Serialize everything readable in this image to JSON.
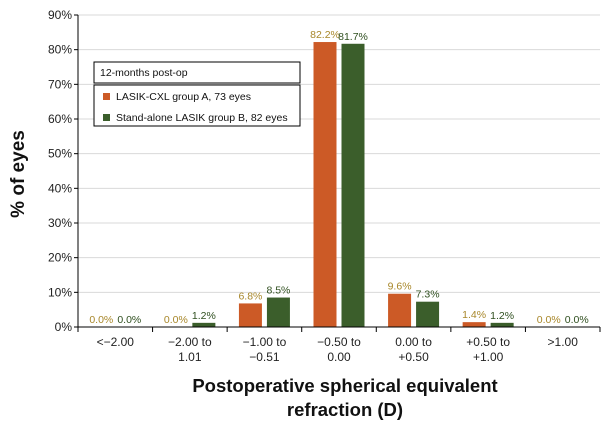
{
  "chart_data": {
    "type": "bar",
    "ylabel": "% of eyes",
    "xlabel_lines": [
      "Postoperative spherical equivalent",
      "refraction (D)"
    ],
    "ylim": [
      0,
      90
    ],
    "yticks": [
      "0%",
      "10%",
      "20%",
      "30%",
      "40%",
      "50%",
      "60%",
      "70%",
      "80%",
      "90%"
    ],
    "categories": [
      [
        "<−2.00"
      ],
      [
        "−2.00 to",
        "1.01"
      ],
      [
        "−1.00 to",
        "−0.51"
      ],
      [
        "−0.50 to",
        "0.00"
      ],
      [
        "0.00 to",
        "+0.50"
      ],
      [
        "+0.50 to",
        "+1.00"
      ],
      [
        ">1.00"
      ]
    ],
    "legend_title": "12-months post-op",
    "legend_position": "upper-left",
    "series": [
      {
        "name": "LASIK-CXL group A, 73 eyes",
        "color": "#cc5a26",
        "label_color": "#a8872a",
        "values": [
          0.0,
          0.0,
          6.8,
          82.2,
          9.6,
          1.4,
          0.0
        ],
        "labels": [
          "0.0%",
          "0.0%",
          "6.8%",
          "82.2%",
          "9.6%",
          "1.4%",
          "0.0%"
        ]
      },
      {
        "name": "Stand-alone LASIK group B, 82 eyes",
        "color": "#3b5e2b",
        "label_color": "#2f4f1f",
        "values": [
          0.0,
          1.2,
          8.5,
          81.7,
          7.3,
          1.2,
          0.0
        ],
        "labels": [
          "0.0%",
          "1.2%",
          "8.5%",
          "81.7%",
          "7.3%",
          "1.2%",
          "0.0%"
        ]
      }
    ]
  }
}
